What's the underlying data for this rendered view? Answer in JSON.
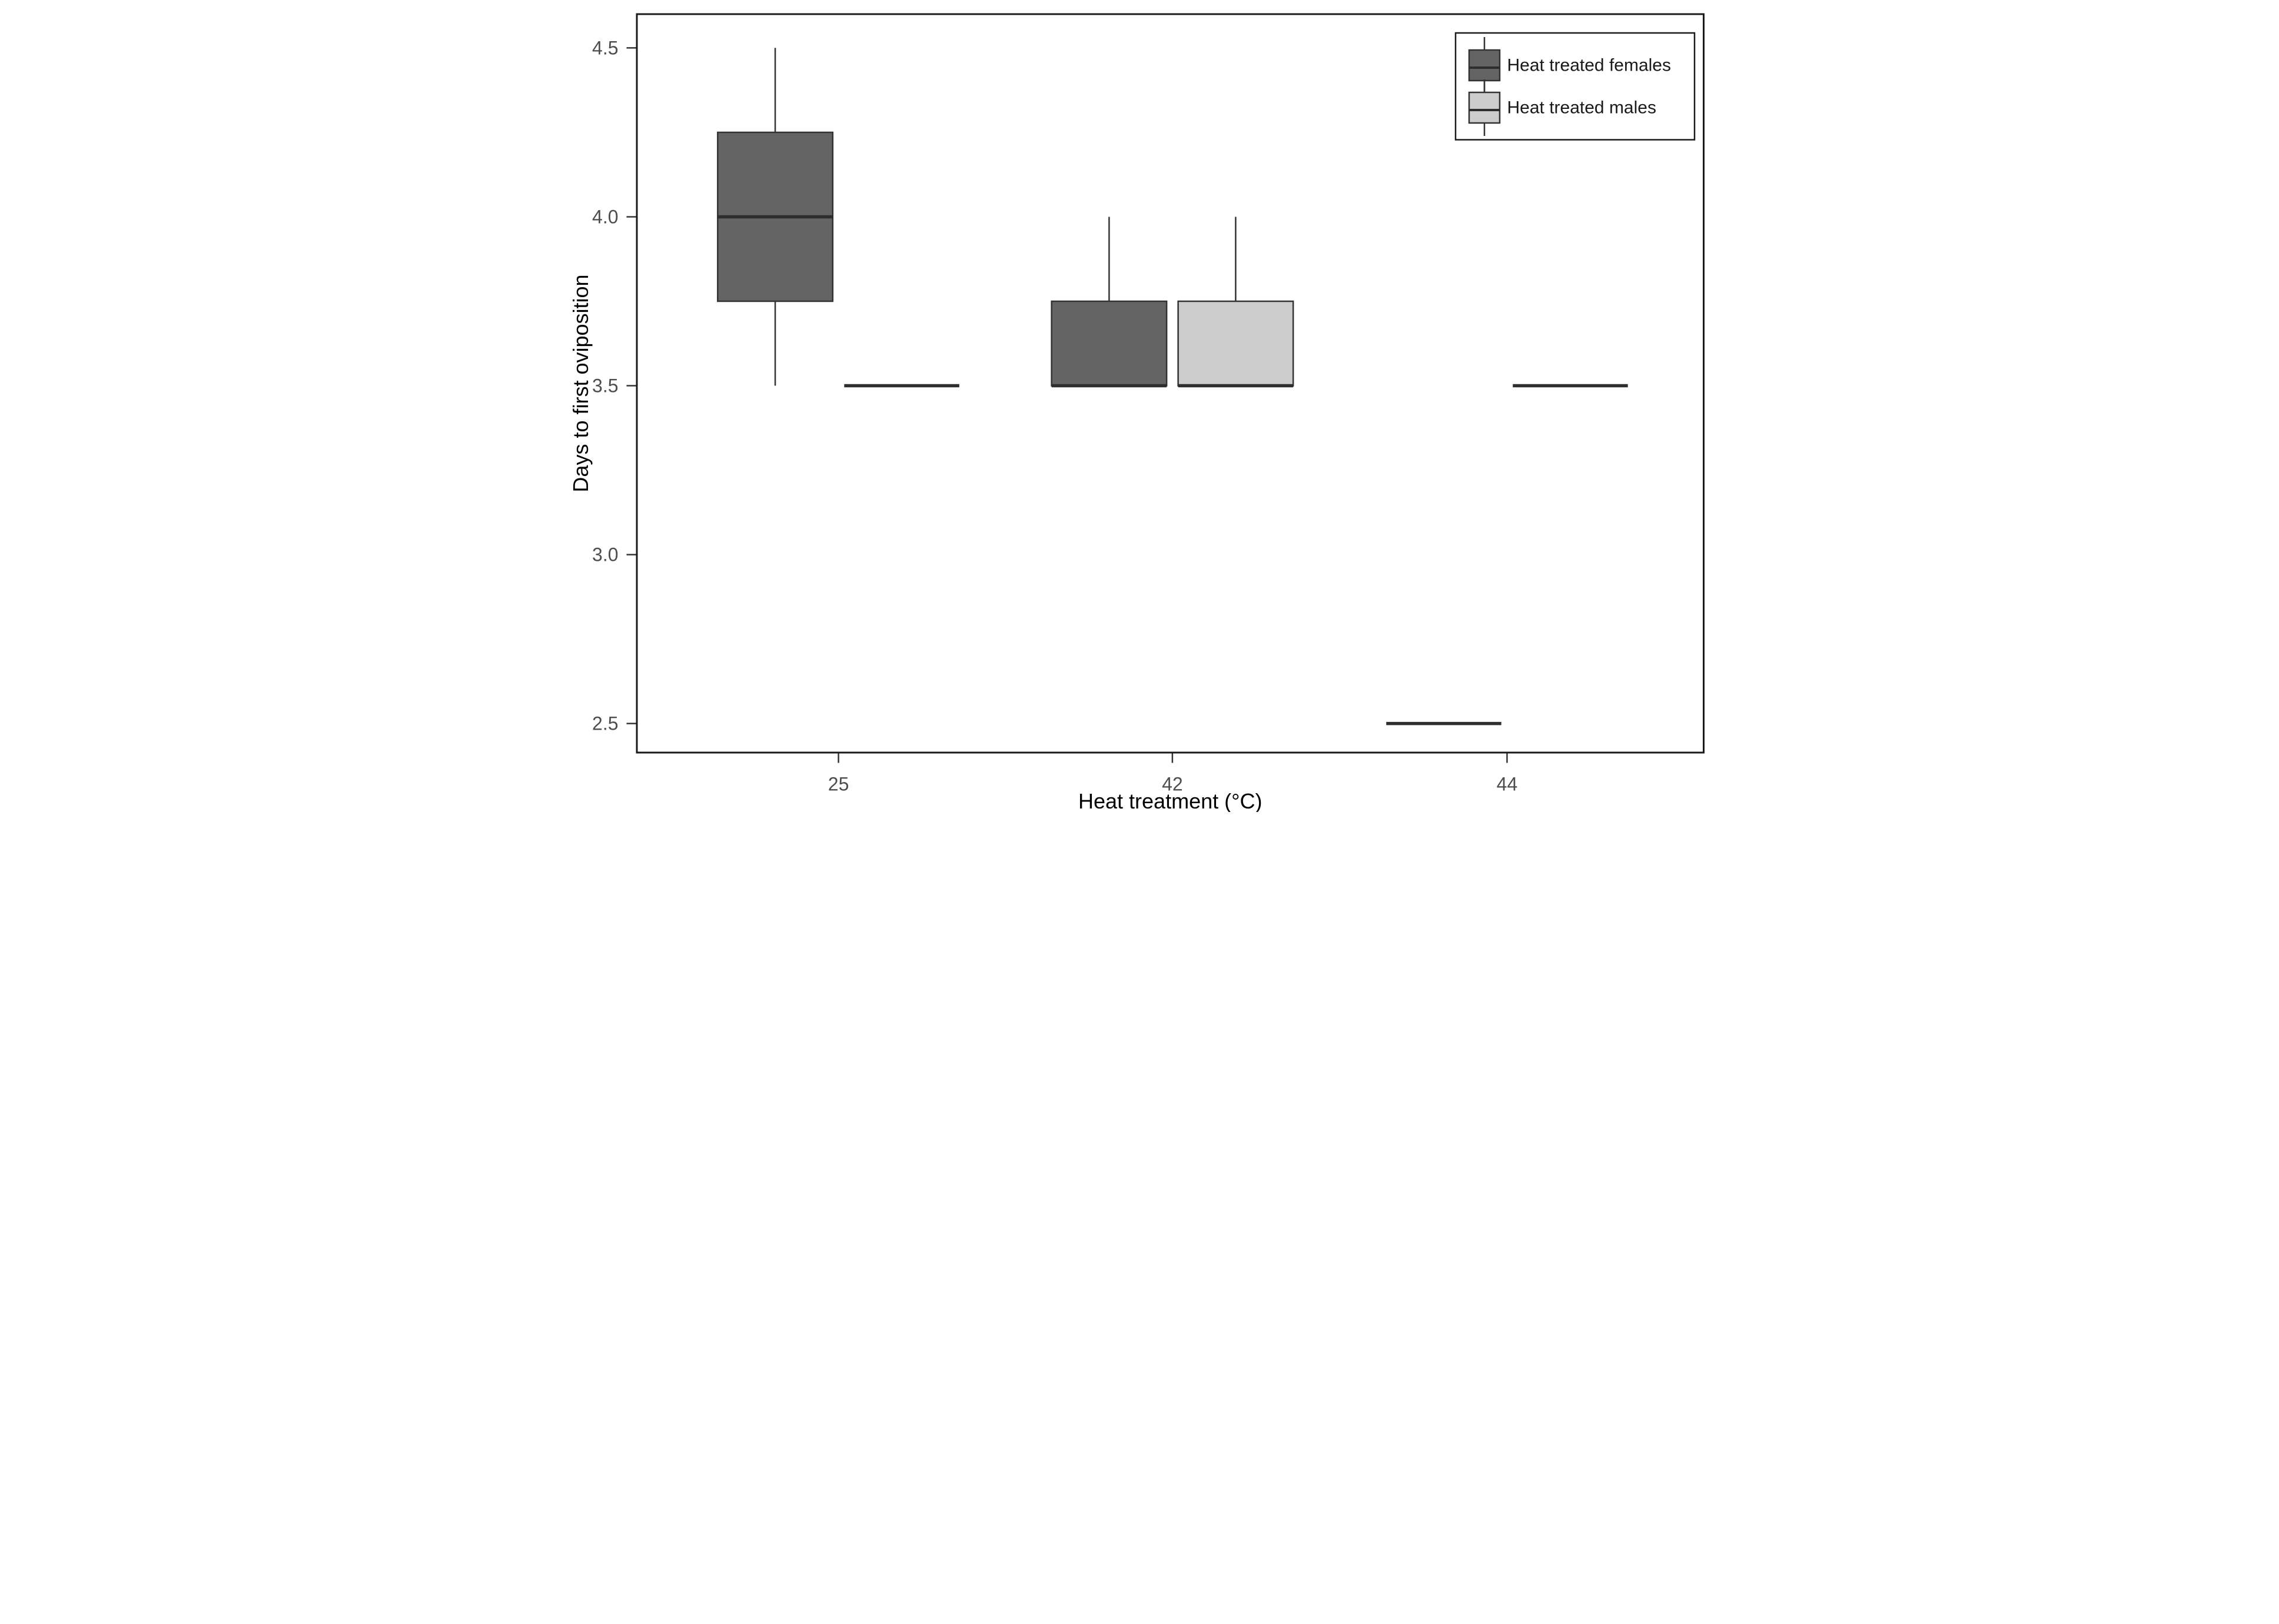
{
  "figure": {
    "background": "#ffffff"
  },
  "chart_data": {
    "type": "boxplot",
    "title": "",
    "xlabel": "Heat treatment (°C)",
    "ylabel": "Days to first oviposition",
    "categories": [
      "25",
      "42",
      "44"
    ],
    "yticks": [
      2.5,
      3.0,
      3.5,
      4.0,
      4.5
    ],
    "ytick_labels": [
      "2.5",
      "3.0",
      "3.5",
      "4.0",
      "4.5"
    ],
    "ylim": [
      2.414,
      4.6
    ],
    "grid": "off",
    "legend_position": "top-right-inside",
    "legend": [
      {
        "label": "Heat treated females",
        "fill": "#646464"
      },
      {
        "label": "Heat treated males",
        "fill": "#CCCCCC"
      }
    ],
    "series": [
      {
        "name": "Heat treated females",
        "fill": "#646464",
        "boxes": [
          {
            "category": "25",
            "min": 3.5,
            "q1": 3.75,
            "median": 4.0,
            "q3": 4.25,
            "max": 4.5
          },
          {
            "category": "42",
            "min": 3.5,
            "q1": 3.5,
            "median": 3.5,
            "q3": 3.75,
            "max": 4.0
          },
          {
            "category": "44",
            "min": 2.5,
            "q1": 2.5,
            "median": 2.5,
            "q3": 2.5,
            "max": 2.5
          }
        ]
      },
      {
        "name": "Heat treated males",
        "fill": "#CCCCCC",
        "boxes": [
          {
            "category": "25",
            "min": 3.5,
            "q1": 3.5,
            "median": 3.5,
            "q3": 3.5,
            "max": 3.5
          },
          {
            "category": "42",
            "min": 3.5,
            "q1": 3.5,
            "median": 3.5,
            "q3": 3.75,
            "max": 4.0
          },
          {
            "category": "44",
            "min": 3.5,
            "q1": 3.5,
            "median": 3.5,
            "q3": 3.5,
            "max": 3.5
          }
        ]
      }
    ],
    "style": {
      "box_border_color": "#333333",
      "whisker_color": "#333333",
      "median_color": "#2e2e2e",
      "panel_border_color": "#1a1a1a",
      "tick_color": "#333333",
      "tick_label_color": "#4d4d4d",
      "axis_title_color": "#000000",
      "legend_text_color": "#1a1a1a",
      "legend_border_color": "#1a1a1a",
      "legend_background": "#ffffff"
    }
  }
}
